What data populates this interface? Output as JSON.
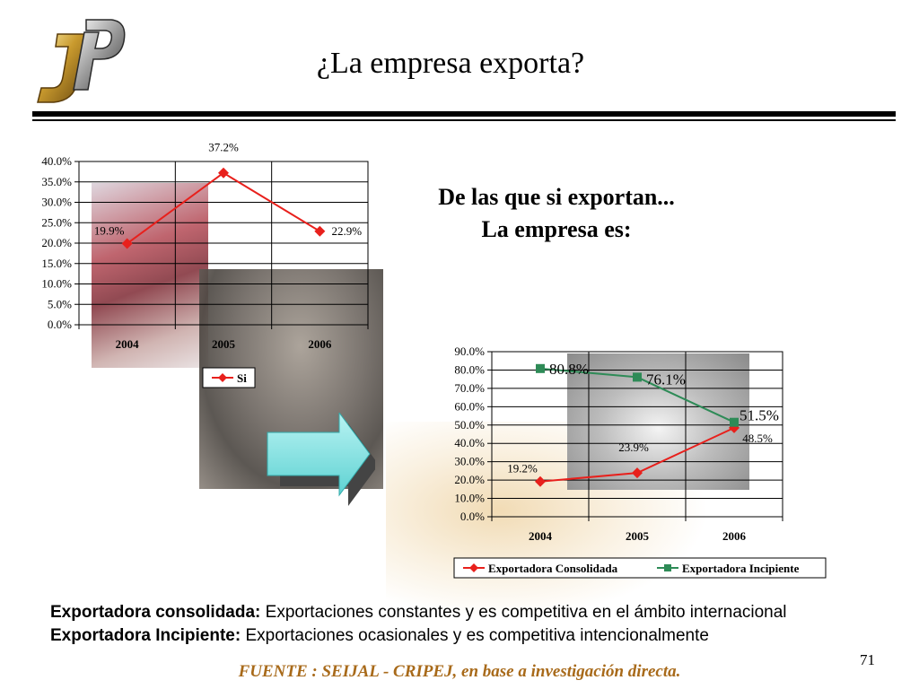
{
  "title": "¿La empresa exporta?",
  "subtitle": {
    "line1": "De las que si exportan...",
    "line2": "La empresa es:"
  },
  "notes": [
    {
      "term": "Exportadora consolidada:",
      "text": " Exportaciones constantes y es competitiva en el ámbito internacional"
    },
    {
      "term": "Exportadora Incipiente:",
      "text": " Exportaciones ocasionales y es competitiva intencionalmente"
    }
  ],
  "source": "FUENTE :  SEIJAL - CRIPEJ,  en base a investigación directa.",
  "page_number": "71",
  "colors": {
    "red": "#e8201c",
    "green": "#2e8b57",
    "source_text": "#a86a1a"
  },
  "chart_data": [
    {
      "type": "line",
      "categories": [
        "2004",
        "2005",
        "2006"
      ],
      "series": [
        {
          "name": "Si",
          "values": [
            19.9,
            37.2,
            22.9
          ],
          "labels": [
            "19.9%",
            "37.2%",
            "22.9%"
          ],
          "color": "#e8201c"
        }
      ],
      "ylim": [
        0,
        40
      ],
      "yticks": [
        "0.0%",
        "5.0%",
        "10.0%",
        "15.0%",
        "20.0%",
        "25.0%",
        "30.0%",
        "35.0%",
        "40.0%"
      ],
      "grid": true,
      "legend": "bottom"
    },
    {
      "type": "line",
      "categories": [
        "2004",
        "2005",
        "2006"
      ],
      "series": [
        {
          "name": "Exportadora Consolidada",
          "values": [
            19.2,
            23.9,
            48.5
          ],
          "labels": [
            "19.2%",
            "23.9%",
            "48.5%"
          ],
          "color": "#e8201c"
        },
        {
          "name": "Exportadora Incipiente",
          "values": [
            80.8,
            76.1,
            51.5
          ],
          "labels": [
            "80.8%",
            "76.1%",
            "51.5%"
          ],
          "color": "#2e8b57"
        }
      ],
      "ylim": [
        0,
        90
      ],
      "yticks": [
        "0.0%",
        "10.0%",
        "20.0%",
        "30.0%",
        "40.0%",
        "50.0%",
        "60.0%",
        "70.0%",
        "80.0%",
        "90.0%"
      ],
      "grid": true,
      "legend": "bottom"
    }
  ]
}
